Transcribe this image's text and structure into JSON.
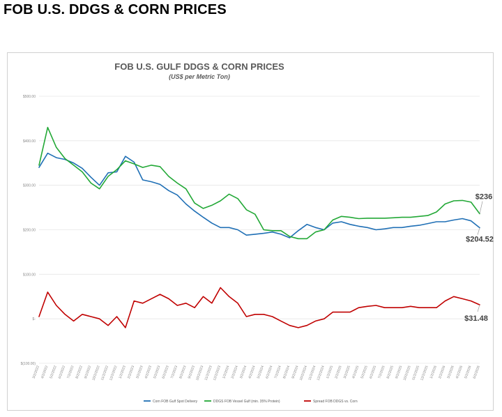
{
  "page": {
    "title": "FOB U.S. DDGS & CORN PRICES"
  },
  "chart_data": {
    "type": "line",
    "title": "FOB U.S. GULF DDGS & CORN PRICES",
    "subtitle": "(US$ per Metric Ton)",
    "xlabel": "",
    "ylabel": "",
    "ylim": [
      -100,
      500
    ],
    "y_ticks": [
      "$500.00",
      "$400.00",
      "$300.00",
      "$200.00",
      "$100.00",
      "$-",
      "$(100.00)"
    ],
    "y_tick_values": [
      500,
      400,
      300,
      200,
      100,
      0,
      -100
    ],
    "grid": true,
    "legend_position": "bottom",
    "x_tick_labels": [
      "3/2/2022",
      "4/2/2022",
      "5/2/2022",
      "6/2/2022",
      "7/2/2022",
      "8/2/2022",
      "9/2/2022",
      "10/2/2022",
      "11/2/2022",
      "12/2/2022",
      "1/2/2023",
      "2/2/2023",
      "3/2/2023",
      "4/2/2023",
      "5/2/2023",
      "6/2/2023",
      "7/2/2023",
      "8/2/2023",
      "9/2/2023",
      "10/2/2023",
      "11/2/2023",
      "12/2/2023",
      "1/2/2024",
      "2/2/2024",
      "3/2/2024",
      "4/2/2024",
      "5/2/2024",
      "6/2/2024",
      "7/2/2024",
      "8/2/2024",
      "9/2/2024",
      "10/2/2024",
      "11/2/2024",
      "12/2/2024",
      "1/2/2025",
      "2/2/2025",
      "3/2/2025",
      "4/2/2025",
      "5/2/2025",
      "6/2/2025",
      "7/2/2025",
      "8/2/2025",
      "9/2/2025",
      "10/2/2025",
      "11/2/2025",
      "12/2/2025",
      "1/2/2026",
      "2/2/2026",
      "3/2/2026",
      "4/2/2026",
      "5/2/2026",
      "6/2/2026"
    ],
    "x": [
      "2022-03",
      "2022-04",
      "2022-05",
      "2022-06",
      "2022-07",
      "2022-08",
      "2022-09",
      "2022-10",
      "2022-11",
      "2022-12",
      "2023-01",
      "2023-02",
      "2023-03",
      "2023-04",
      "2023-05",
      "2023-06",
      "2023-07",
      "2023-08",
      "2023-09",
      "2023-10",
      "2023-11",
      "2023-12",
      "2024-01",
      "2024-02",
      "2024-03",
      "2024-04",
      "2024-05",
      "2024-06",
      "2024-07",
      "2024-08",
      "2024-09",
      "2024-10",
      "2024-11",
      "2024-12",
      "2025-01",
      "2025-02",
      "2025-03",
      "2025-04",
      "2025-05",
      "2025-06",
      "2025-07",
      "2025-08",
      "2025-09",
      "2025-10",
      "2025-11",
      "2025-12",
      "2026-01",
      "2026-02",
      "2026-03",
      "2026-04",
      "2026-05",
      "2026-06"
    ],
    "series": [
      {
        "name": "Corn FOB Gulf Spot Delivery",
        "color": "#1f6fb5",
        "values": [
          340,
          372,
          362,
          358,
          350,
          338,
          318,
          300,
          328,
          330,
          365,
          352,
          312,
          308,
          302,
          288,
          278,
          258,
          242,
          228,
          215,
          205,
          205,
          200,
          188,
          190,
          192,
          195,
          190,
          182,
          198,
          212,
          205,
          200,
          215,
          218,
          212,
          208,
          205,
          200,
          202,
          205,
          205,
          208,
          210,
          214,
          218,
          218,
          222,
          225,
          220,
          204.52
        ]
      },
      {
        "name": "DDGS FOB Vessel Gulf (min. 35% Protein)",
        "color": "#22a836",
        "values": [
          345,
          430,
          385,
          360,
          345,
          330,
          305,
          292,
          320,
          335,
          355,
          348,
          340,
          345,
          342,
          320,
          305,
          292,
          260,
          248,
          255,
          265,
          280,
          270,
          245,
          235,
          200,
          198,
          198,
          185,
          180,
          180,
          195,
          200,
          222,
          230,
          228,
          225,
          226,
          226,
          226,
          227,
          228,
          228,
          230,
          232,
          240,
          258,
          265,
          266,
          262,
          236
        ]
      },
      {
        "name": "Spread FOB DDGS vs. Corn",
        "color": "#c00000",
        "values": [
          5,
          60,
          30,
          10,
          -5,
          10,
          5,
          0,
          -15,
          5,
          -20,
          40,
          35,
          45,
          55,
          45,
          30,
          35,
          25,
          50,
          35,
          70,
          50,
          35,
          5,
          10,
          10,
          5,
          -5,
          -15,
          -20,
          -15,
          -5,
          0,
          15,
          15,
          15,
          25,
          28,
          30,
          25,
          25,
          25,
          28,
          25,
          25,
          25,
          40,
          50,
          45,
          40,
          31.48
        ]
      }
    ],
    "end_labels": {
      "ddgs": "$236",
      "corn": "$204.52",
      "spread": "$31.48"
    }
  }
}
